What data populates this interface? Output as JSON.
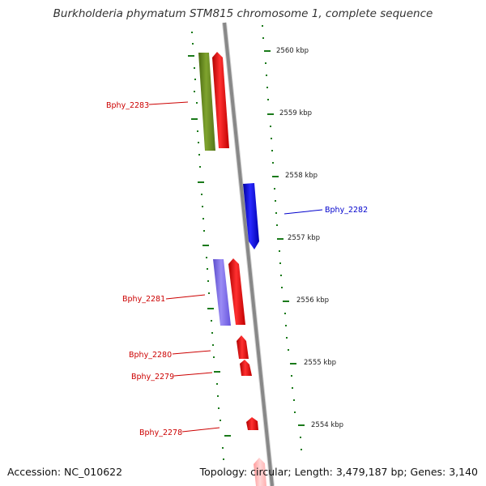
{
  "title": "Burkholderia phymatum STM815 chromosome 1, complete sequence",
  "accession": "Accession: NC_010622",
  "topology": "Topology: circular; Length: 3,479,187 bp; Genes: 3,140",
  "kbp_labels": [
    "2560 kbp",
    "2559 kbp",
    "2558 kbp",
    "2557 kbp",
    "2556 kbp",
    "2555 kbp",
    "2554 kbp"
  ],
  "gene_labels": [
    "Bphy_2283",
    "Bphy_2282",
    "Bphy_2281",
    "Bphy_2280",
    "Bphy_2279",
    "Bphy_2278"
  ],
  "colors": {
    "forward_gene": "#ff0000",
    "reverse_gene": "#0000ff",
    "olive_feature": "#6b8e23",
    "lavender_feature": "#7b68ee",
    "tick": "#1a7a1a",
    "backbone": "#888888",
    "forward_label": "#cc0000",
    "reverse_label": "#0000cc"
  }
}
